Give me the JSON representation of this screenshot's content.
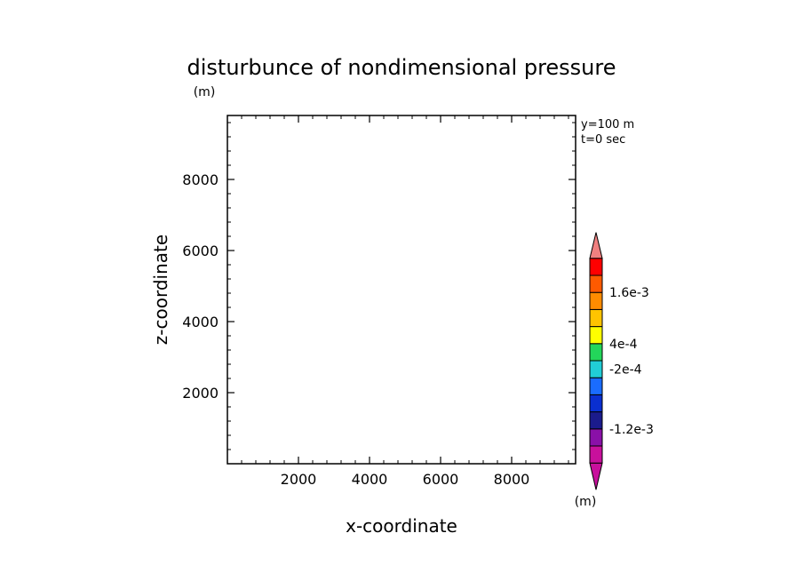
{
  "chart_data": {
    "type": "heatmap",
    "title": "disturbunce of nondimensional pressure",
    "xlabel": "x-coordinate",
    "ylabel": "z-coordinate",
    "y_unit": "(m)",
    "x_unit": "(m)",
    "xlim": [
      0,
      9800
    ],
    "ylim": [
      0,
      9800
    ],
    "xticks": [
      2000,
      4000,
      6000,
      8000
    ],
    "yticks": [
      2000,
      4000,
      6000,
      8000
    ],
    "xtick_labels": [
      "2000",
      "4000",
      "6000",
      "8000"
    ],
    "ytick_labels": [
      "2000",
      "4000",
      "6000",
      "8000"
    ],
    "info": [
      "y=100 m",
      "t=0 sec"
    ],
    "data": [],
    "colorbar": {
      "colors": [
        "#c8109c",
        "#8a10a8",
        "#1b1b8c",
        "#0a2fd0",
        "#1a6cff",
        "#21cdd6",
        "#23d65a",
        "#ffff00",
        "#ffc400",
        "#ff8c00",
        "#ff5a00",
        "#ff0000",
        "#f08080"
      ],
      "labels": [
        {
          "text": "1.6e-3",
          "boundary": 10
        },
        {
          "text": "4e-4",
          "boundary": 7
        },
        {
          "text": "-2e-4",
          "boundary": 5.5
        },
        {
          "text": "-1.2e-3",
          "boundary": 2
        }
      ]
    }
  }
}
